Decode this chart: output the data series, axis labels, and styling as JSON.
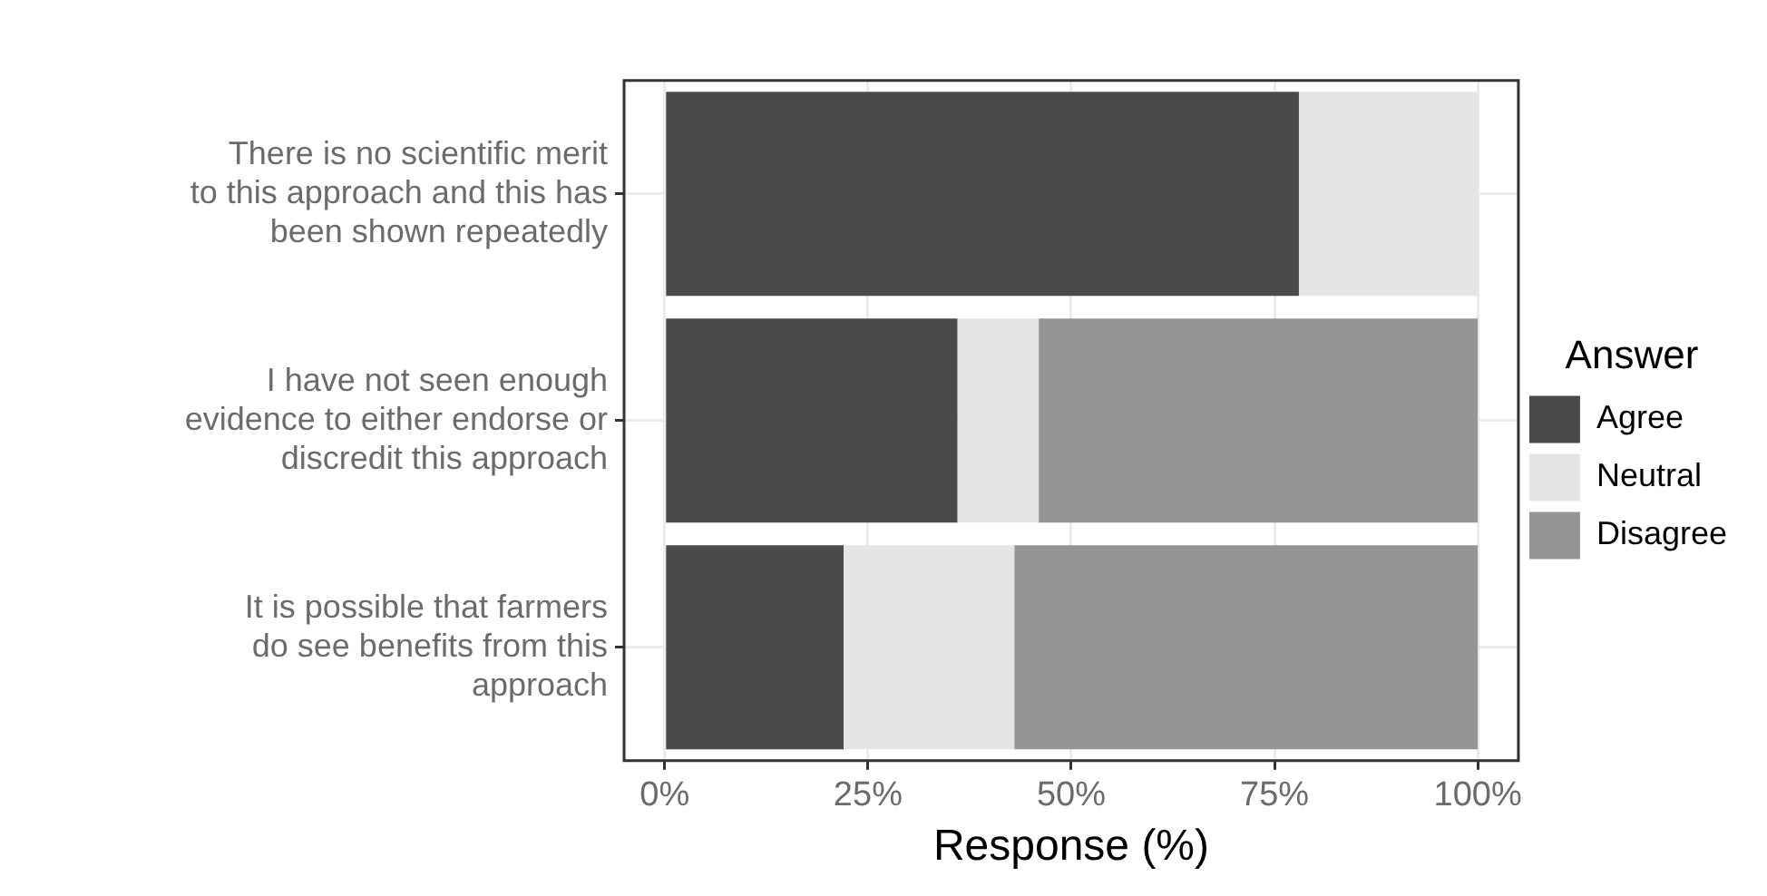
{
  "chart_data": {
    "type": "bar",
    "orientation": "horizontal",
    "stacked": true,
    "categories": [
      "There is no scientific merit to this approach and this has been shown repeatedly",
      "I have not seen enough evidence to either endorse or discredit this approach",
      "It is possible that farmers do see benefits from this approach"
    ],
    "series": [
      {
        "name": "Agree",
        "color": "#4a4a4c",
        "values": [
          78,
          36,
          22
        ]
      },
      {
        "name": "Neutral",
        "color": "#e5e5e7",
        "values": [
          22,
          10,
          21
        ]
      },
      {
        "name": "Disagree",
        "color": "#949597",
        "values": [
          0,
          54,
          57
        ]
      }
    ],
    "xlabel": "Response (%)",
    "legend_title": "Answer",
    "legend": "right",
    "grid": true,
    "xlim": [
      -5,
      105
    ],
    "xticks": [
      {
        "value": 0,
        "label": "0%"
      },
      {
        "value": 25,
        "label": "25%"
      },
      {
        "value": 50,
        "label": "50%"
      },
      {
        "value": 75,
        "label": "75%"
      },
      {
        "value": 100,
        "label": "100%"
      }
    ]
  }
}
